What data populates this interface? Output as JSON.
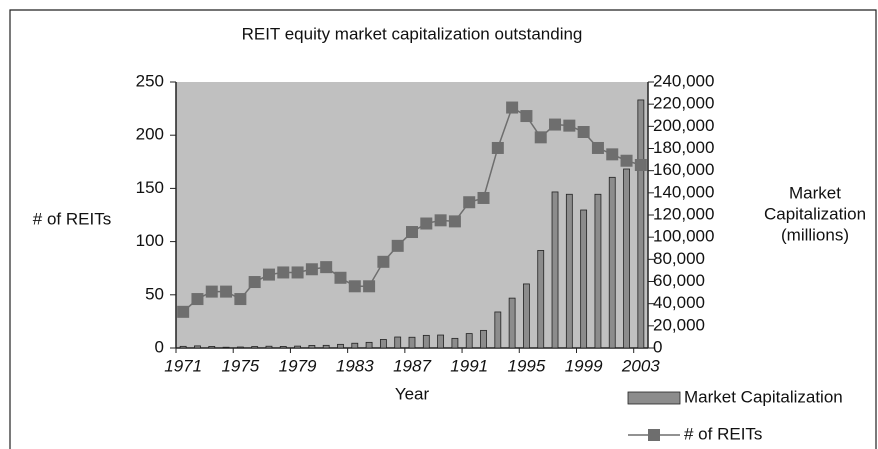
{
  "chart_data": {
    "type": "bar_line",
    "title": "REIT equity market capitalization outstanding",
    "x_label": "Year",
    "y_label": "# of REITs",
    "y2_label": [
      "Market",
      "Capitalization",
      "(millions)"
    ],
    "categories": [
      "1971",
      null,
      null,
      null,
      "1975",
      null,
      null,
      null,
      "1979",
      null,
      null,
      null,
      "1983",
      null,
      null,
      null,
      "1987",
      null,
      null,
      null,
      "1991",
      null,
      null,
      null,
      "1995",
      null,
      null,
      null,
      "1999",
      null,
      null,
      null,
      "2003"
    ],
    "series": [
      {
        "name": "Market Capitalization",
        "type": "bar",
        "axis": "y2",
        "color": "#8c8c8c",
        "values": [
          1500,
          1900,
          1400,
          700,
          900,
          1300,
          1600,
          1400,
          1700,
          2300,
          2400,
          3300,
          4300,
          5100,
          7700,
          9900,
          9700,
          11400,
          11700,
          8700,
          13000,
          15900,
          32500,
          45000,
          57800,
          88000,
          140800,
          138700,
          124500,
          138700,
          154000,
          161500,
          223800
        ]
      },
      {
        "name": "# of REITs",
        "type": "line",
        "axis": "y",
        "color": "#6e6e6e",
        "values": [
          34,
          46,
          53,
          53,
          46,
          62,
          69,
          71,
          71,
          74,
          76,
          66,
          58,
          58,
          81,
          96,
          109,
          117,
          120,
          119,
          137,
          141,
          188,
          226,
          218,
          198,
          210,
          209,
          203,
          188,
          182,
          176,
          172
        ]
      }
    ],
    "ylim": [
      0,
      250
    ],
    "yticks": [
      0,
      50,
      100,
      150,
      200,
      250
    ],
    "y2lim": [
      0,
      240000
    ],
    "y2ticks": [
      0,
      {
        "value": 20000,
        "label": "20,000"
      },
      {
        "value": 40000,
        "label": "40,000"
      },
      {
        "value": 60000,
        "label": "60,000"
      },
      {
        "value": 80000,
        "label": "80,000"
      },
      {
        "value": 100000,
        "label": "100,000"
      },
      {
        "value": 120000,
        "label": "120,000"
      },
      {
        "value": 140000,
        "label": "140,000"
      },
      {
        "value": 160000,
        "label": "160,000"
      },
      {
        "value": 180000,
        "label": "180,000"
      },
      {
        "value": 200000,
        "label": "200,000"
      },
      {
        "value": 220000,
        "label": "220,000"
      },
      {
        "value": 240000,
        "label": "240,000"
      }
    ],
    "plot_background": "#c0c0c0"
  }
}
